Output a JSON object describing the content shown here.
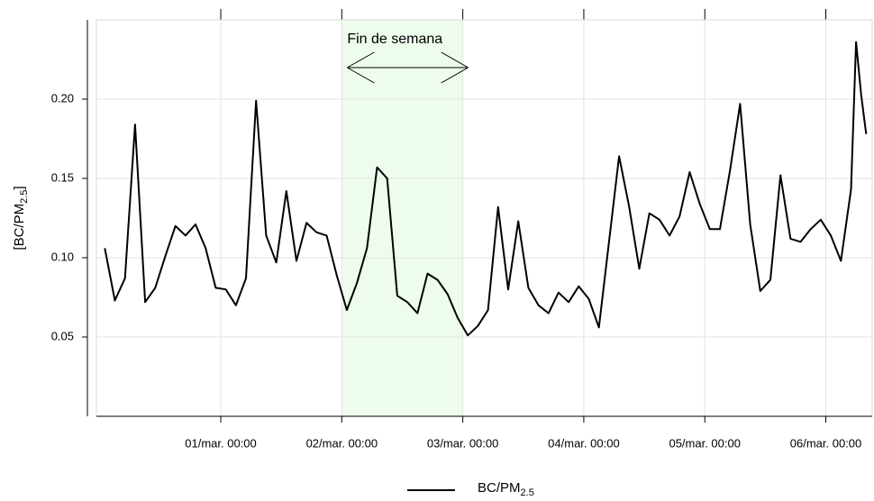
{
  "chart_data": {
    "type": "line",
    "y_label": "[BC/PM",
    "y_label_subscript": "2.5",
    "y_label_end": "]",
    "x": [
      "28/feb. 01:00",
      "28/feb. 03:00",
      "28/feb. 05:00",
      "28/feb. 07:00",
      "28/feb. 09:00",
      "28/feb. 11:00",
      "28/feb. 13:00",
      "28/feb. 15:00",
      "28/feb. 17:00",
      "28/feb. 19:00",
      "28/feb. 21:00",
      "28/feb. 23:00",
      "01/mar. 01:00",
      "01/mar. 03:00",
      "01/mar. 05:00",
      "01/mar. 07:00",
      "01/mar. 09:00",
      "01/mar. 11:00",
      "01/mar. 13:00",
      "01/mar. 15:00",
      "01/mar. 17:00",
      "01/mar. 19:00",
      "01/mar. 21:00",
      "01/mar. 23:00",
      "02/mar. 01:00",
      "02/mar. 03:00",
      "02/mar. 05:00",
      "02/mar. 07:00",
      "02/mar. 09:00",
      "02/mar. 11:00",
      "02/mar. 13:00",
      "02/mar. 15:00",
      "02/mar. 17:00",
      "02/mar. 19:00",
      "02/mar. 21:00",
      "02/mar. 23:00",
      "03/mar. 01:00",
      "03/mar. 03:00",
      "03/mar. 05:00",
      "03/mar. 07:00",
      "03/mar. 09:00",
      "03/mar. 11:00",
      "03/mar. 13:00",
      "03/mar. 15:00",
      "03/mar. 17:00",
      "03/mar. 19:00",
      "03/mar. 21:00",
      "03/mar. 23:00",
      "04/mar. 01:00",
      "04/mar. 03:00",
      "04/mar. 05:00",
      "04/mar. 07:00",
      "04/mar. 09:00",
      "04/mar. 11:00",
      "04/mar. 13:00",
      "04/mar. 15:00",
      "04/mar. 17:00",
      "04/mar. 19:00",
      "04/mar. 21:00",
      "04/mar. 23:00",
      "05/mar. 01:00",
      "05/mar. 03:00",
      "05/mar. 05:00",
      "05/mar. 07:00",
      "05/mar. 09:00",
      "05/mar. 11:00",
      "05/mar. 13:00",
      "05/mar. 15:00",
      "05/mar. 17:00",
      "05/mar. 19:00",
      "05/mar. 21:00",
      "05/mar. 23:00",
      "06/mar. 01:00",
      "06/mar. 03:00",
      "06/mar. 05:00",
      "06/mar. 06:00",
      "06/mar. 07:00",
      "06/mar. 08:00"
    ],
    "series": [
      {
        "name": "BC/PM",
        "name_subscript": "2.5",
        "color": "#000000",
        "values": [
          0.106,
          0.073,
          0.087,
          0.184,
          0.072,
          0.081,
          0.101,
          0.12,
          0.114,
          0.121,
          0.106,
          0.081,
          0.08,
          0.07,
          0.087,
          0.199,
          0.114,
          0.097,
          0.142,
          0.098,
          0.122,
          0.116,
          0.114,
          0.089,
          0.067,
          0.084,
          0.106,
          0.157,
          0.15,
          0.076,
          0.072,
          0.065,
          0.09,
          0.086,
          0.077,
          0.062,
          0.051,
          0.057,
          0.067,
          0.132,
          0.08,
          0.123,
          0.081,
          0.07,
          0.065,
          0.078,
          0.072,
          0.082,
          0.074,
          0.056,
          0.11,
          0.164,
          0.132,
          0.093,
          0.128,
          0.124,
          0.114,
          0.126,
          0.154,
          0.134,
          0.118,
          0.118,
          0.155,
          0.197,
          0.121,
          0.079,
          0.086,
          0.152,
          0.112,
          0.11,
          0.118,
          0.124,
          0.114,
          0.098,
          0.143,
          0.236,
          0.203,
          0.178
        ]
      }
    ],
    "xlim": [
      "27/feb. 23:20",
      "06/mar. 09:12"
    ],
    "xticks": [
      "01/mar. 00:00",
      "02/mar. 00:00",
      "03/mar. 00:00",
      "04/mar. 00:00",
      "05/mar. 00:00",
      "06/mar. 00:00"
    ],
    "ylim": [
      0,
      0.25
    ],
    "yticks": [
      0.05,
      {
        "value": 0.1,
        "label": "0.10"
      },
      0.15,
      {
        "value": 0.2,
        "label": "0.20"
      }
    ],
    "grid": true,
    "legend": "bottom",
    "shaded_region": {
      "from": "02/mar. 00:00",
      "to": "03/mar. 00:00",
      "color": "#edfced"
    },
    "annotation": "Fin de semana"
  }
}
